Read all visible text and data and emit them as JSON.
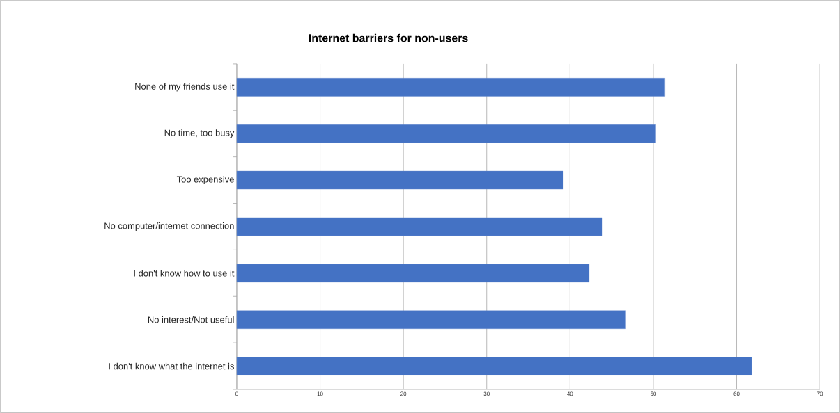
{
  "chart_data": {
    "type": "bar",
    "orientation": "horizontal",
    "title": "Internet barriers for non-users",
    "categories": [
      "None of my friends use it",
      "No time, too busy",
      "Too expensive",
      "No computer/internet connection",
      "I don't know how to use it",
      "No interest/Not useful",
      "I don't know what the internet is"
    ],
    "values": [
      51.4,
      50.3,
      39.2,
      43.9,
      42.3,
      46.7,
      61.8
    ],
    "color": "#4472c4",
    "xlim": [
      0,
      70
    ],
    "xticks": [
      0,
      10,
      20,
      30,
      40,
      50,
      60,
      70
    ],
    "grid": "x"
  }
}
